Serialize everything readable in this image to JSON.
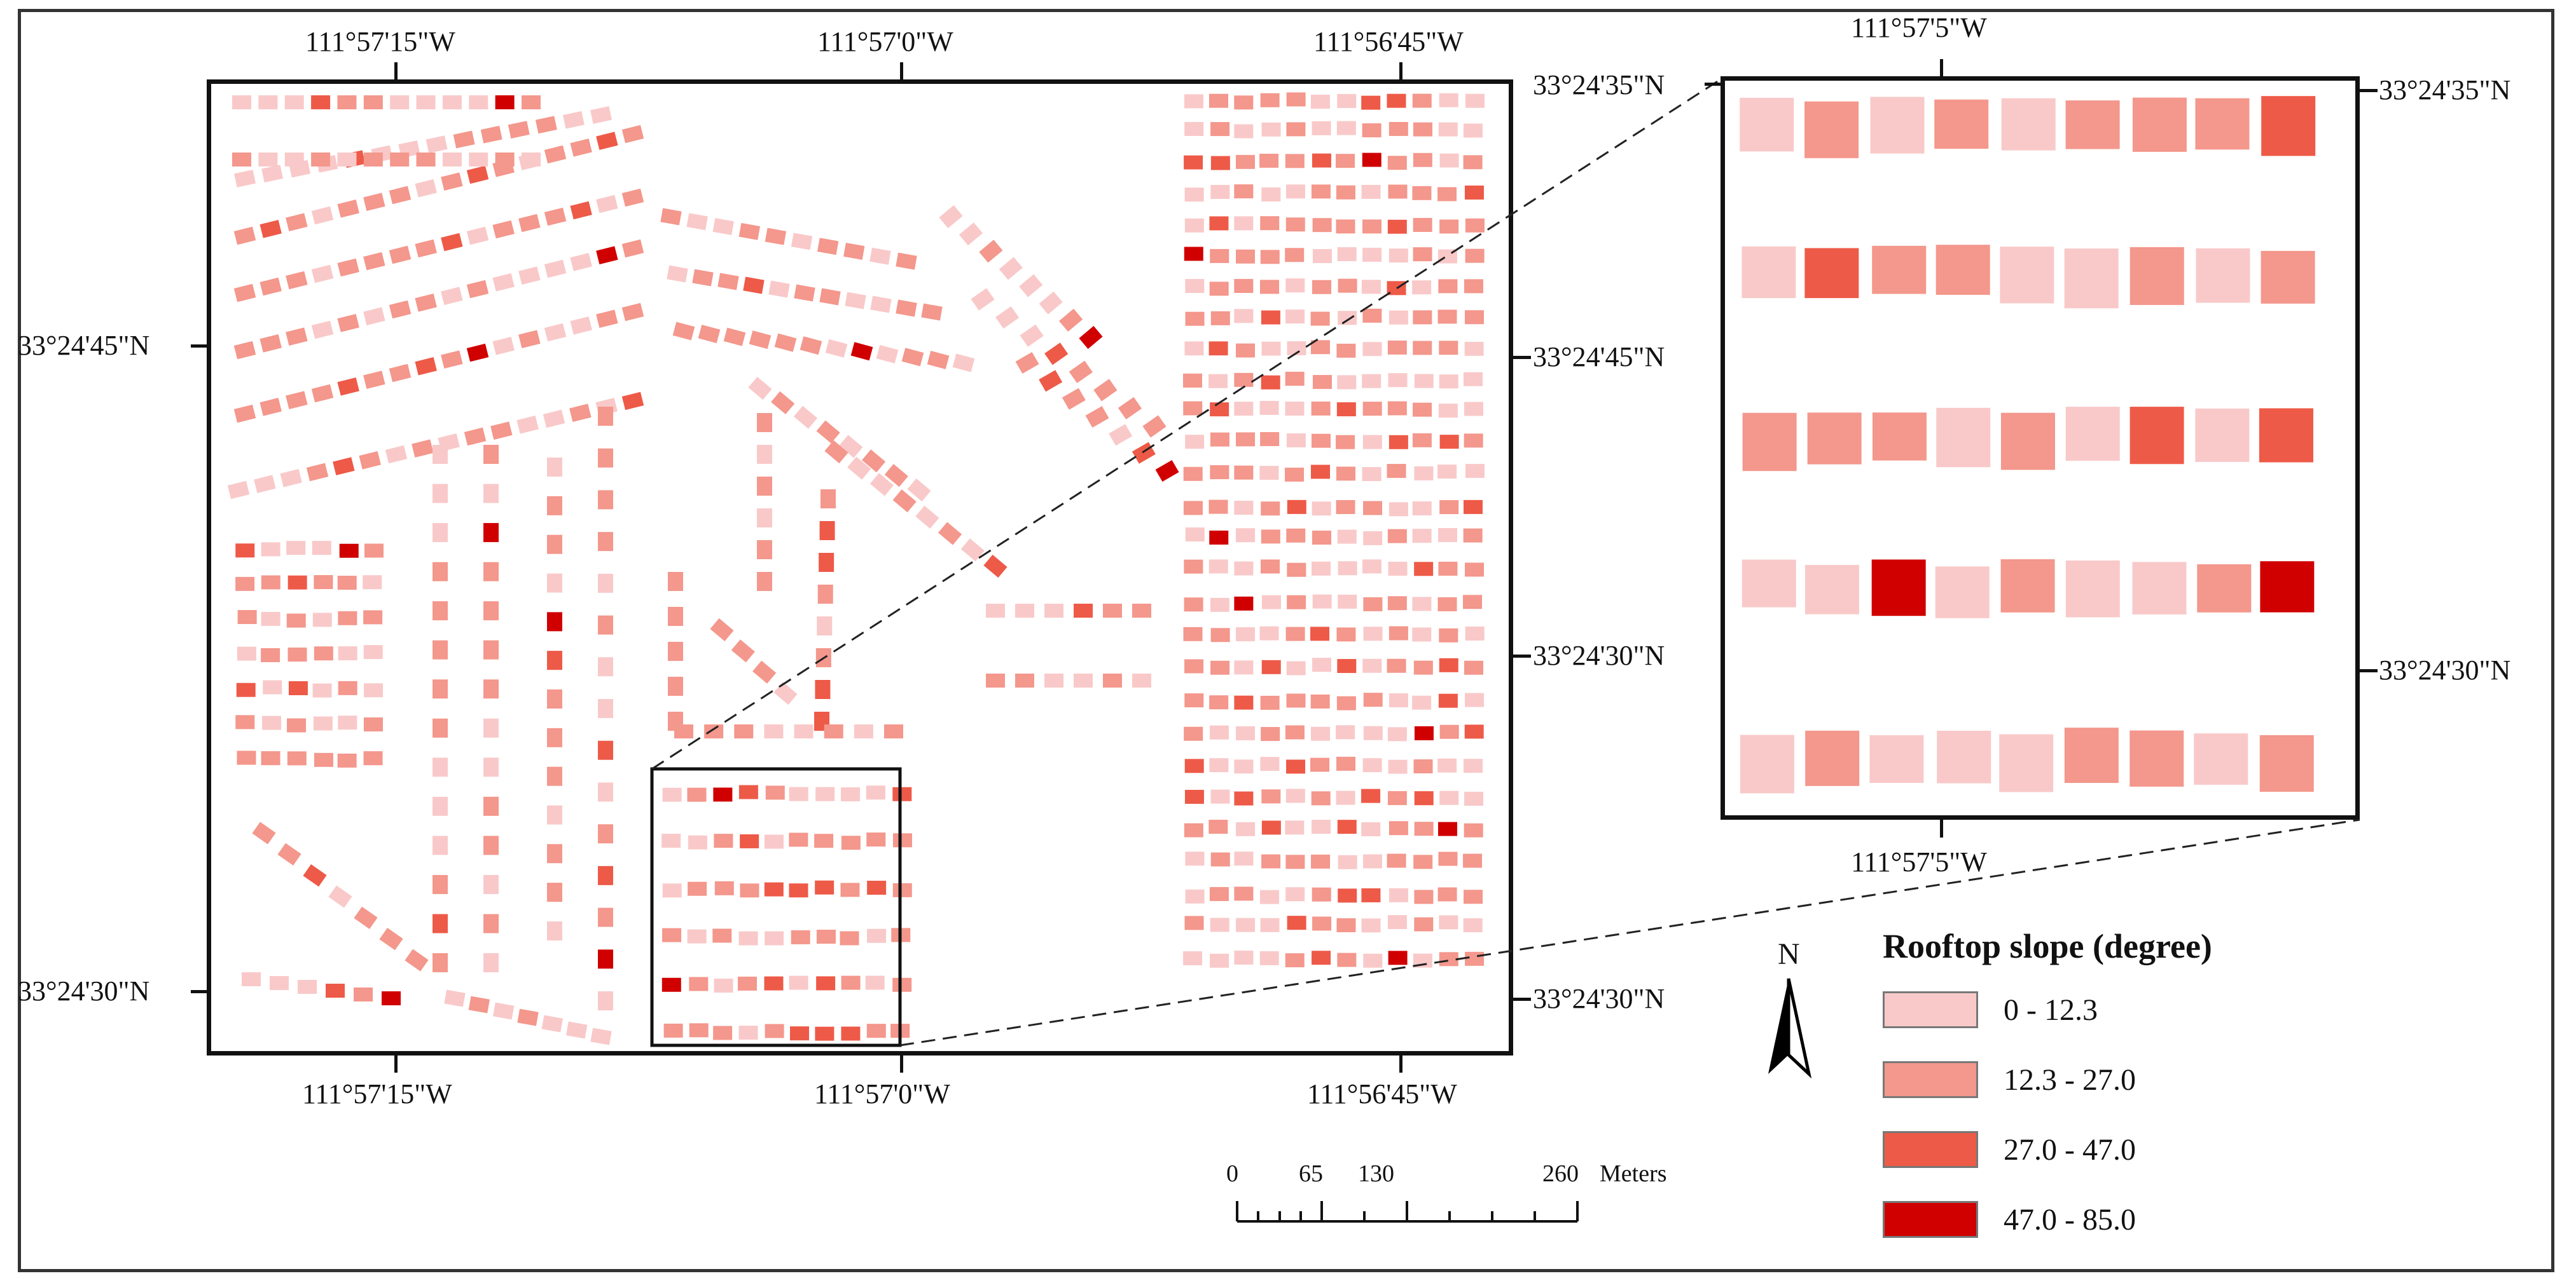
{
  "main_map": {
    "top_lon_labels": [
      "111°57'15\"W",
      "111°57'0\"W",
      "111°56'45\"W"
    ],
    "bottom_lon_labels": [
      "111°57'15\"W",
      "111°57'0\"W",
      "111°56'45\"W"
    ],
    "left_lat_labels": [
      "33°24'45\"N",
      "33°24'30\"N"
    ],
    "right_lat_labels": [
      "33°24'35\"N",
      "33°24'45\"N",
      "33°24'30\"N",
      "33°24'30\"N"
    ]
  },
  "inset_map": {
    "top_lon_label": "111°57'5\"W",
    "bottom_lon_label": "111°57'5\"W",
    "right_lat_labels": [
      "33°24'35\"N",
      "33°24'30\"N"
    ]
  },
  "north_arrow": {
    "label": "N"
  },
  "legend": {
    "title": "Rooftop slope (degree)",
    "classes": [
      {
        "label": "0 - 12.3",
        "color": "#f9c9c9"
      },
      {
        "label": "12.3 - 27.0",
        "color": "#f4978c"
      },
      {
        "label": "27.0 - 47.0",
        "color": "#ee5a48"
      },
      {
        "label": "47.0 - 85.0",
        "color": "#d10000"
      }
    ]
  },
  "scale_bar": {
    "ticks": [
      "0",
      "65",
      "130",
      "260"
    ],
    "unit": "Meters"
  }
}
